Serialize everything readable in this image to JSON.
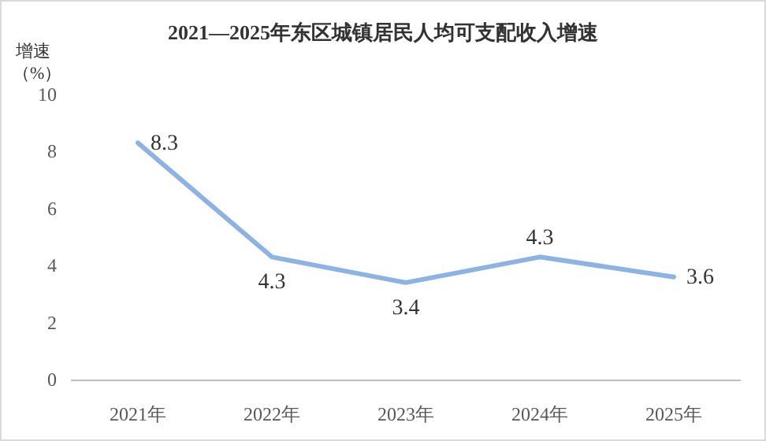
{
  "chart_data": {
    "type": "line",
    "title": "2021—2025年东区城镇居民人均可支配收入增速",
    "ylabel": "增速（%）",
    "categories": [
      "2021年",
      "2022年",
      "2023年",
      "2024年",
      "2025年"
    ],
    "series": [
      {
        "color": "#8db3e2",
        "values": [
          8.3,
          4.3,
          3.4,
          4.3,
          3.6
        ]
      }
    ],
    "ylim": [
      0,
      10
    ],
    "yticks": [
      0,
      2,
      4,
      6,
      8,
      10
    ],
    "grid": false,
    "marker": "none",
    "line_style": "solid",
    "data_labels": true
  }
}
